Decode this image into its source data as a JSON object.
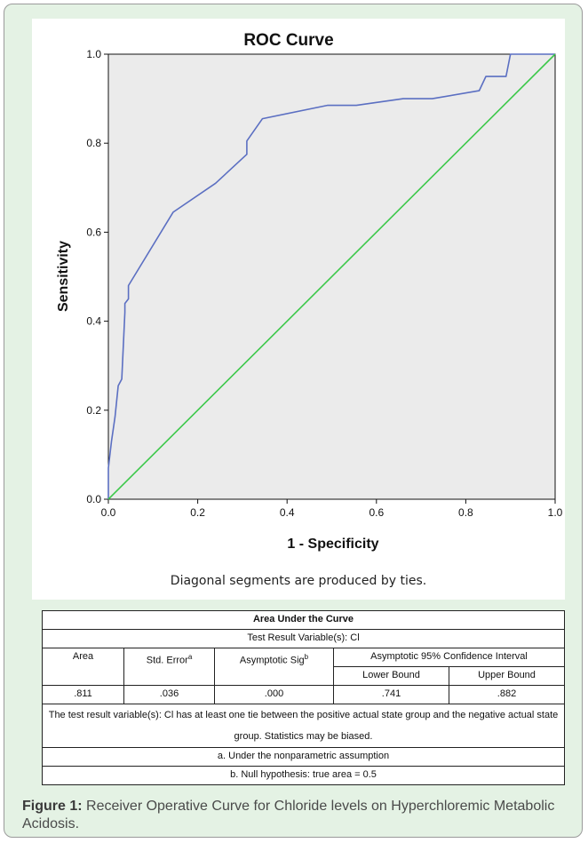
{
  "chart_data": {
    "type": "line",
    "title": "ROC Curve",
    "xlabel": "1 - Specificity",
    "ylabel": "Sensitivity",
    "xlim": [
      0,
      1
    ],
    "ylim": [
      0,
      1
    ],
    "xticks": [
      "0.0",
      "0.2",
      "0.4",
      "0.6",
      "0.8",
      "1.0"
    ],
    "yticks": [
      "0.0",
      "0.2",
      "0.4",
      "0.6",
      "0.8",
      "1.0"
    ],
    "grid": false,
    "plot_background": "#ebebeb",
    "note": "Diagonal segments are produced by ties.",
    "series": [
      {
        "role": "roc",
        "color": "#5b6fc2",
        "x": [
          0,
          0,
          0.007,
          0.015,
          0.022,
          0.03,
          0.037,
          0.037,
          0.045,
          0.045,
          0.145,
          0.24,
          0.31,
          0.31,
          0.345,
          0.49,
          0.555,
          0.66,
          0.725,
          0.83,
          0.845,
          0.865,
          0.89,
          0.9,
          0.9,
          1.0
        ],
        "y": [
          0,
          0.07,
          0.13,
          0.185,
          0.255,
          0.27,
          0.42,
          0.44,
          0.45,
          0.48,
          0.645,
          0.71,
          0.775,
          0.805,
          0.855,
          0.885,
          0.885,
          0.9,
          0.9,
          0.918,
          0.95,
          0.95,
          0.95,
          1.0,
          1.0,
          1.0
        ]
      },
      {
        "role": "reference",
        "color": "#3cc84a",
        "x": [
          0,
          1
        ],
        "y": [
          0,
          1
        ]
      }
    ]
  },
  "table": {
    "title": "Area Under the Curve",
    "subtitle": "Test Result Variable(s): Cl",
    "headers": {
      "area": "Area",
      "std_error": "Std. Error",
      "std_error_sup": "a",
      "asymptotic_sig": "Asymptotic Sig",
      "asymptotic_sig_sup": "b",
      "ci": "Asymptotic 95% Confidence Interval",
      "lower": "Lower Bound",
      "upper": "Upper Bound"
    },
    "row": {
      "area": ".811",
      "std_error": ".036",
      "asymptotic_sig": ".000",
      "lower": ".741",
      "upper": ".882"
    },
    "footnotes": [
      "The test result variable(s): Cl has at least one tie between the positive actual state group and the negative actual state group. Statistics may be biased.",
      "a. Under the nonparametric assumption",
      "b. Null hypothesis: true area = 0.5"
    ]
  },
  "caption": {
    "label": "Figure 1:",
    "text": " Receiver Operative Curve for Chloride levels on Hyperchloremic Metabolic Acidosis."
  }
}
